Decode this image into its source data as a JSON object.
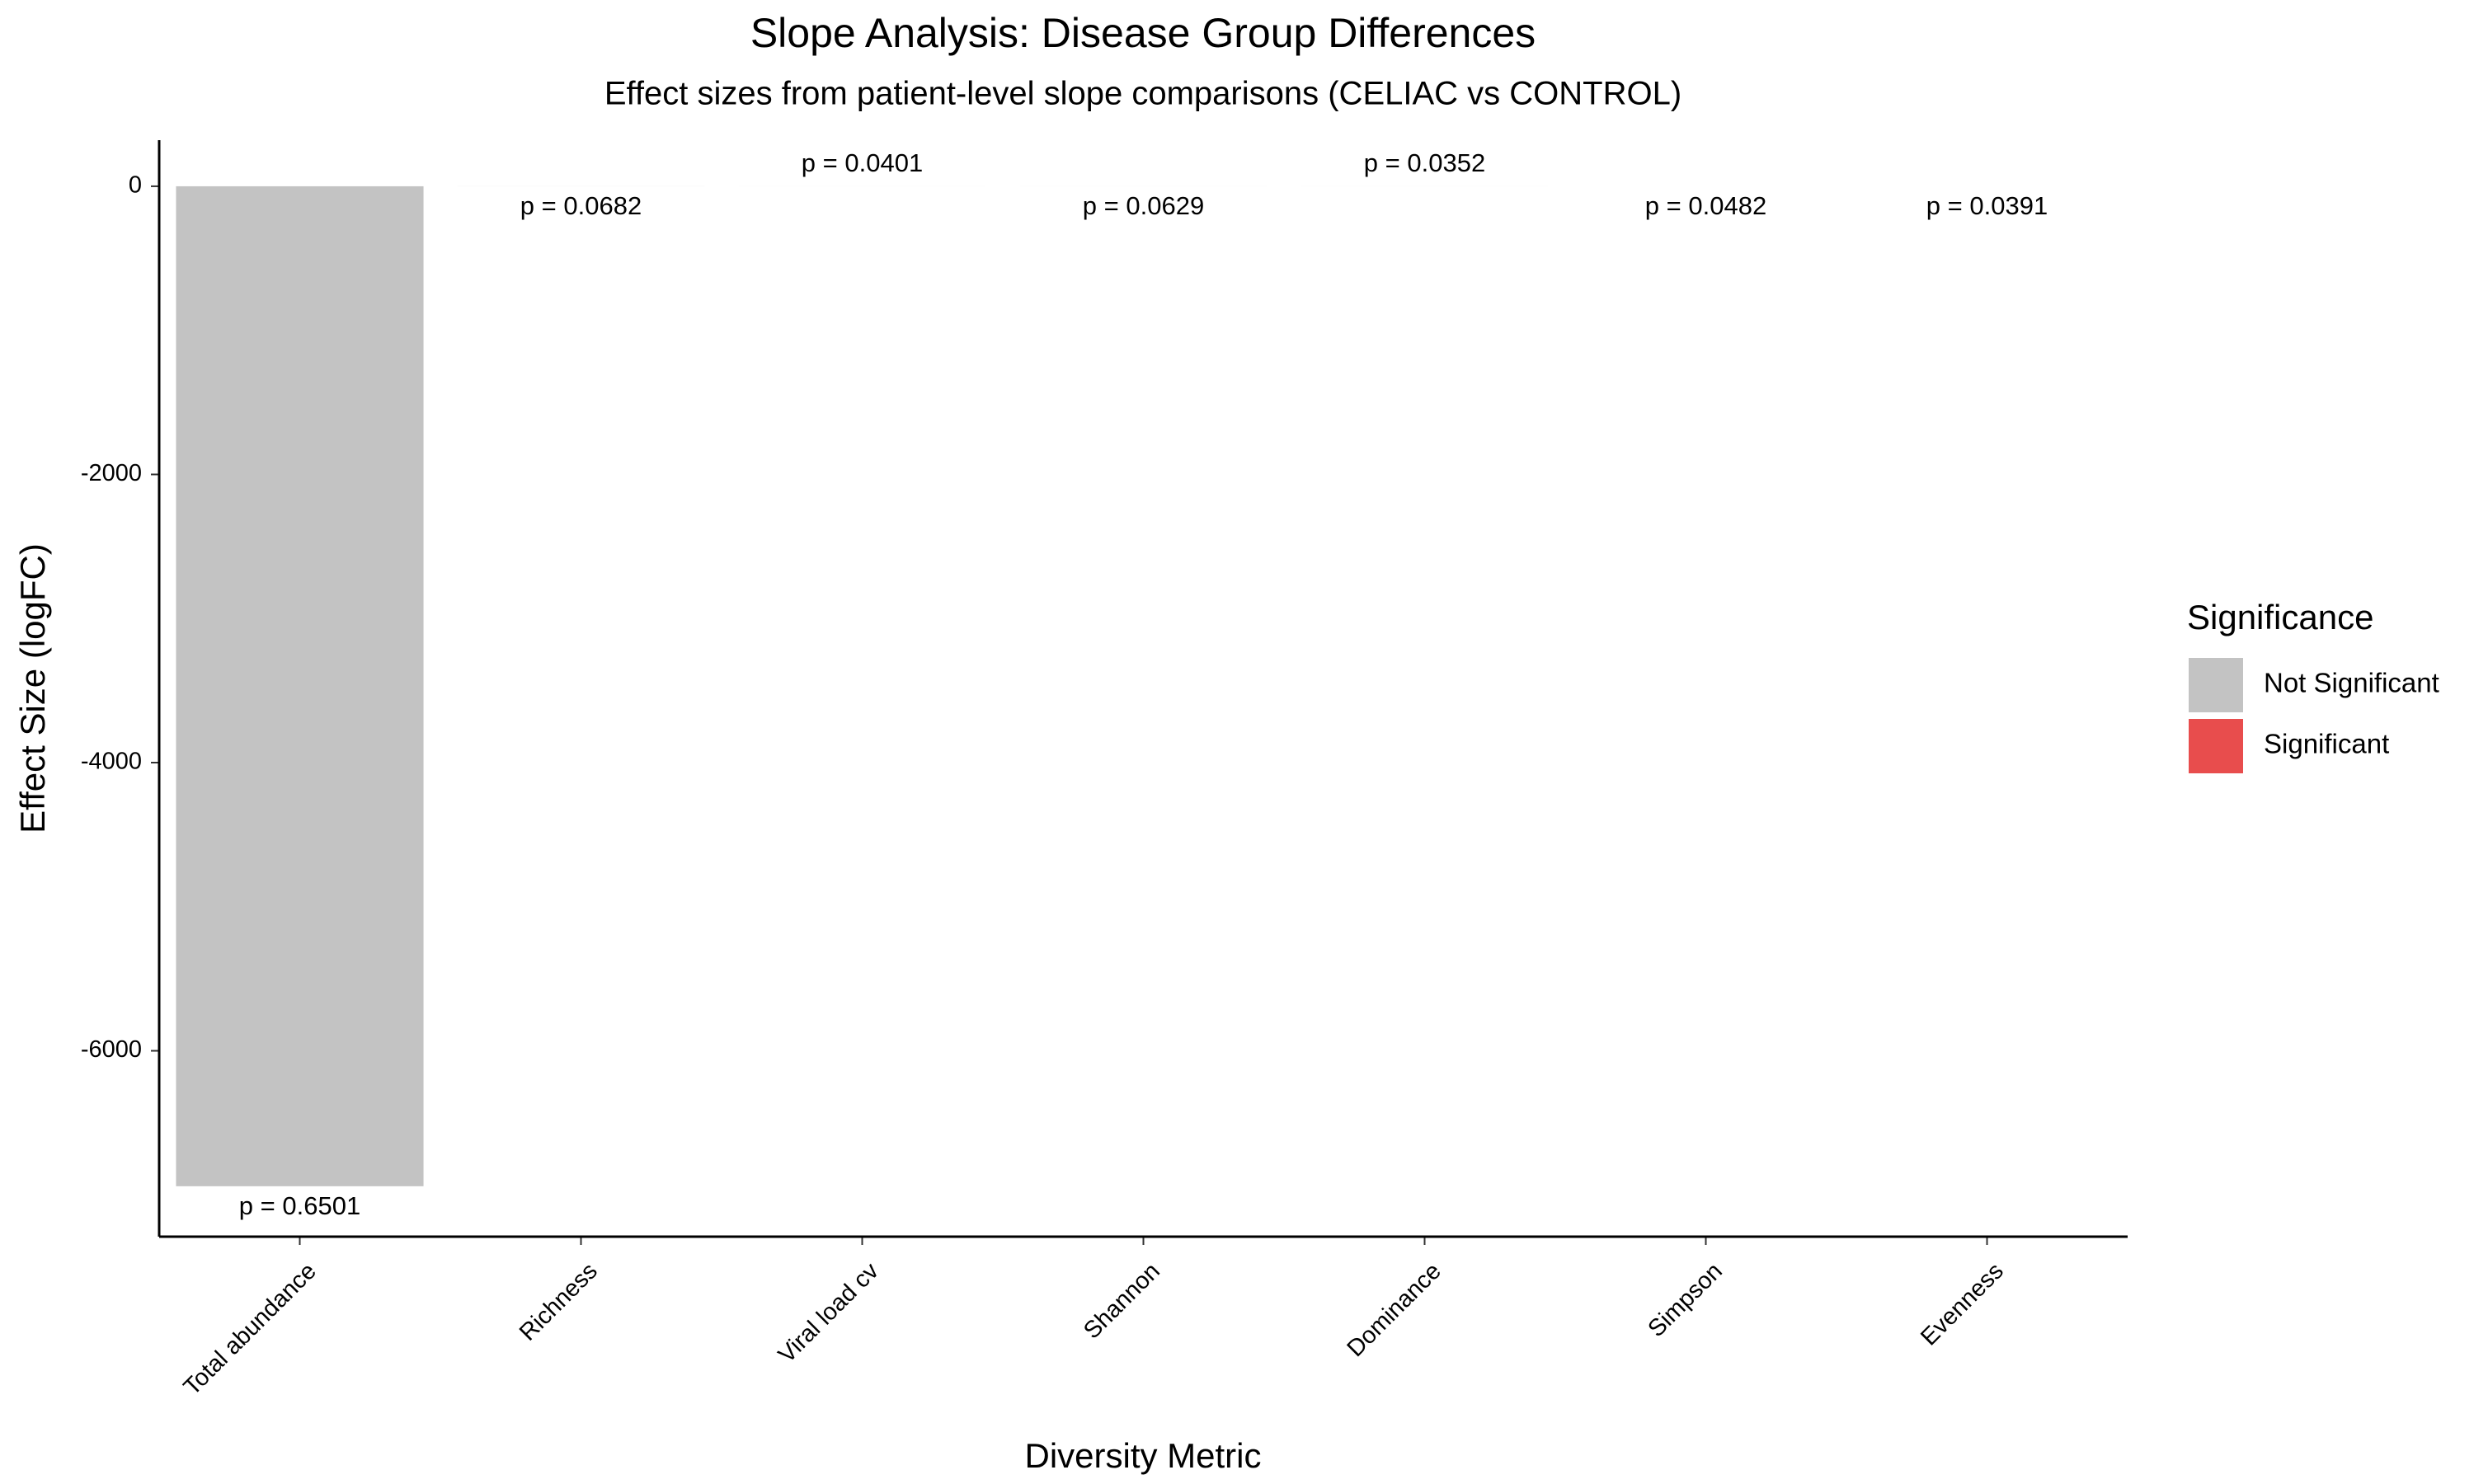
{
  "chart_data": {
    "type": "bar",
    "title": "Slope Analysis: Disease Group Differences",
    "subtitle": "Effect sizes from patient-level slope comparisons (CELIAC vs CONTROL)",
    "x_label": "Diversity Metric",
    "y_label": "Effect Size (logFC)",
    "categories": [
      "Total abundance",
      "Richness",
      "Viral load cv",
      "Shannon",
      "Dominance",
      "Simpson",
      "Evenness"
    ],
    "values": [
      -6940,
      -0.5,
      0.3,
      -0.2,
      0.2,
      -0.1,
      -0.1
    ],
    "p_labels": [
      "p = 0.6501",
      "p = 0.0682",
      "p = 0.0401",
      "p = 0.0629",
      "p = 0.0352",
      "p = 0.0482",
      "p = 0.0391"
    ],
    "significance": [
      "Not Significant",
      "Not Significant",
      "Not Significant",
      "Not Significant",
      "Not Significant",
      "Not Significant",
      "Not Significant"
    ],
    "legend": {
      "title": "Significance",
      "position": "right",
      "entries": [
        {
          "name": "Not Significant",
          "color": "#c3c3c3"
        },
        {
          "name": "Significant",
          "color": "#e84d4d"
        }
      ]
    },
    "ylim": [
      -7290,
      320
    ],
    "yticks": [
      -6000,
      -4000,
      -2000,
      0
    ],
    "grid": false
  }
}
